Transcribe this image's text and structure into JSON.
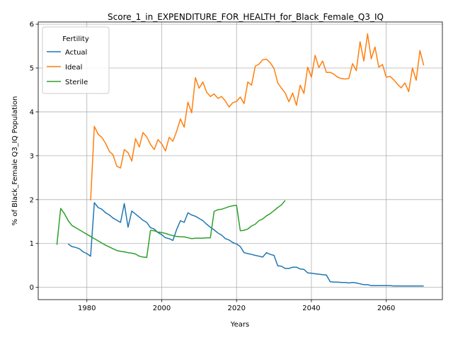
{
  "chart_data": {
    "type": "line",
    "title": "Score_1_in_EXPENDITURE_FOR_HEALTH_for_Black_Female_Q3_IQ",
    "xlabel": "Years",
    "ylabel": "% of Black_Female Q3_IQ Population",
    "xlim": [
      1967,
      2075
    ],
    "ylim": [
      -0.28,
      6.05
    ],
    "xticks": [
      1980,
      2000,
      2020,
      2040,
      2060
    ],
    "yticks": [
      0,
      1,
      2,
      3,
      4,
      5,
      6
    ],
    "grid": true,
    "legend": {
      "title": "Fertility",
      "placement": "top-left"
    },
    "series": [
      {
        "name": "Actual",
        "color": "#1f77b4",
        "x": [
          1975,
          1976,
          1977,
          1978,
          1979,
          1980,
          1981,
          1982,
          1983,
          1984,
          1985,
          1986,
          1987,
          1988,
          1989,
          1990,
          1991,
          1992,
          1993,
          1994,
          1995,
          1996,
          1997,
          1998,
          1999,
          2000,
          2001,
          2002,
          2003,
          2004,
          2005,
          2006,
          2007,
          2008,
          2009,
          2010,
          2011,
          2012,
          2013,
          2014,
          2015,
          2016,
          2017,
          2018,
          2019,
          2020,
          2021,
          2022,
          2023,
          2024,
          2025,
          2026,
          2027,
          2028,
          2029,
          2030,
          2031,
          2032,
          2033,
          2034,
          2035,
          2036,
          2037,
          2038,
          2039,
          2040,
          2041,
          2042,
          2043,
          2044,
          2045,
          2046,
          2047,
          2048,
          2049,
          2050,
          2051,
          2052,
          2053,
          2054,
          2055,
          2056,
          2057,
          2058,
          2059,
          2060,
          2061,
          2062,
          2063,
          2064,
          2065,
          2066,
          2067,
          2068,
          2069,
          2070
        ],
        "values": [
          0.99,
          0.93,
          0.91,
          0.88,
          0.81,
          0.77,
          0.71,
          1.93,
          1.82,
          1.78,
          1.7,
          1.65,
          1.58,
          1.53,
          1.48,
          1.91,
          1.37,
          1.74,
          1.67,
          1.6,
          1.53,
          1.48,
          1.36,
          1.33,
          1.25,
          1.2,
          1.13,
          1.11,
          1.07,
          1.32,
          1.52,
          1.48,
          1.7,
          1.65,
          1.62,
          1.57,
          1.52,
          1.44,
          1.37,
          1.31,
          1.24,
          1.19,
          1.11,
          1.08,
          1.02,
          0.99,
          0.93,
          0.79,
          0.77,
          0.75,
          0.73,
          0.71,
          0.69,
          0.79,
          0.75,
          0.73,
          0.49,
          0.48,
          0.43,
          0.43,
          0.46,
          0.46,
          0.42,
          0.41,
          0.33,
          0.32,
          0.31,
          0.3,
          0.29,
          0.28,
          0.13,
          0.12,
          0.12,
          0.11,
          0.11,
          0.1,
          0.11,
          0.1,
          0.08,
          0.06,
          0.06,
          0.04,
          0.04,
          0.04,
          0.04,
          0.04,
          0.04,
          0.03,
          0.03,
          0.03,
          0.03,
          0.03,
          0.03,
          0.03,
          0.03,
          0.03
        ]
      },
      {
        "name": "Ideal",
        "color": "#ff7f0e",
        "x": [
          1981,
          1982,
          1983,
          1984,
          1985,
          1986,
          1987,
          1988,
          1989,
          1990,
          1991,
          1992,
          1993,
          1994,
          1995,
          1996,
          1997,
          1998,
          1999,
          2000,
          2001,
          2002,
          2003,
          2004,
          2005,
          2006,
          2007,
          2008,
          2009,
          2010,
          2011,
          2012,
          2013,
          2014,
          2015,
          2016,
          2017,
          2018,
          2019,
          2020,
          2021,
          2022,
          2023,
          2024,
          2025,
          2026,
          2027,
          2028,
          2029,
          2030,
          2031,
          2032,
          2033,
          2034,
          2035,
          2036,
          2037,
          2038,
          2039,
          2040,
          2041,
          2042,
          2043,
          2044,
          2045,
          2046,
          2047,
          2048,
          2049,
          2050,
          2051,
          2052,
          2053,
          2054,
          2055,
          2056,
          2057,
          2058,
          2059,
          2060,
          2061,
          2062,
          2063,
          2064,
          2065,
          2066,
          2067,
          2068,
          2069,
          2070
        ],
        "values": [
          1.98,
          3.67,
          3.49,
          3.42,
          3.28,
          3.1,
          3.02,
          2.76,
          2.72,
          3.14,
          3.07,
          2.88,
          3.39,
          3.2,
          3.53,
          3.43,
          3.26,
          3.14,
          3.37,
          3.27,
          3.11,
          3.42,
          3.33,
          3.56,
          3.84,
          3.65,
          4.22,
          3.98,
          4.78,
          4.54,
          4.68,
          4.45,
          4.35,
          4.41,
          4.31,
          4.35,
          4.25,
          4.11,
          4.21,
          4.24,
          4.34,
          4.19,
          4.68,
          4.61,
          5.04,
          5.09,
          5.19,
          5.2,
          5.12,
          4.99,
          4.66,
          4.54,
          4.43,
          4.23,
          4.43,
          4.15,
          4.61,
          4.42,
          5.02,
          4.79,
          5.29,
          5.01,
          5.16,
          4.9,
          4.9,
          4.86,
          4.79,
          4.76,
          4.75,
          4.76,
          5.1,
          4.94,
          5.6,
          5.16,
          5.78,
          5.21,
          5.48,
          5.02,
          5.08,
          4.79,
          4.81,
          4.73,
          4.63,
          4.55,
          4.66,
          4.46,
          5.0,
          4.72,
          5.4,
          5.06
        ]
      },
      {
        "name": "Sterile",
        "color": "#2ca02c",
        "x": [
          1972,
          1973,
          1974,
          1975,
          1976,
          1977,
          1978,
          1979,
          1980,
          1981,
          1982,
          1983,
          1984,
          1985,
          1986,
          1987,
          1988,
          1989,
          1990,
          1991,
          1992,
          1993,
          1994,
          1995,
          1996,
          1997,
          1998,
          1999,
          2000,
          2001,
          2002,
          2003,
          2004,
          2005,
          2006,
          2007,
          2008,
          2009,
          2010,
          2011,
          2012,
          2013,
          2014,
          2015,
          2016,
          2017,
          2018,
          2019,
          2020,
          2021,
          2022,
          2023,
          2024,
          2025,
          2026,
          2027,
          2028,
          2029,
          2030,
          2031,
          2032,
          2033
        ],
        "values": [
          0.97,
          1.8,
          1.68,
          1.52,
          1.41,
          1.36,
          1.31,
          1.26,
          1.21,
          1.16,
          1.11,
          1.06,
          1.01,
          0.96,
          0.92,
          0.88,
          0.84,
          0.82,
          0.81,
          0.79,
          0.78,
          0.76,
          0.71,
          0.69,
          0.68,
          1.3,
          1.29,
          1.26,
          1.25,
          1.23,
          1.2,
          1.18,
          1.16,
          1.15,
          1.15,
          1.13,
          1.11,
          1.12,
          1.12,
          1.12,
          1.13,
          1.13,
          1.73,
          1.77,
          1.78,
          1.81,
          1.84,
          1.86,
          1.87,
          1.29,
          1.3,
          1.33,
          1.4,
          1.44,
          1.52,
          1.56,
          1.63,
          1.68,
          1.75,
          1.82,
          1.88,
          1.98
        ]
      }
    ]
  }
}
